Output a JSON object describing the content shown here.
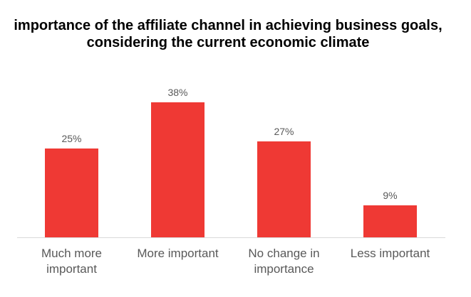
{
  "chart_data": {
    "type": "bar",
    "title": "importance of the affiliate channel in achieving business goals,\nconsidering the current economic climate",
    "categories": [
      [
        "Much more",
        "important"
      ],
      [
        "More important"
      ],
      [
        "No change in",
        "importance"
      ],
      [
        "Less important"
      ]
    ],
    "values": [
      25,
      38,
      27,
      9
    ],
    "data_labels": [
      "25%",
      "38%",
      "27%",
      "9%"
    ],
    "ylim": [
      0,
      40
    ],
    "grid": false,
    "bar_color": "#EF3934",
    "xlabel": "",
    "ylabel": ""
  }
}
